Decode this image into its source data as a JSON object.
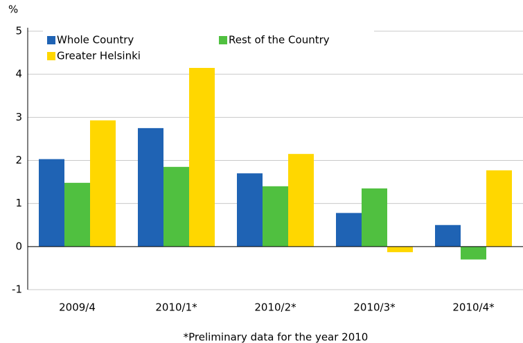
{
  "chart_data": {
    "type": "bar",
    "y_label": "%",
    "categories": [
      "2009/4",
      "2010/1*",
      "2010/2*",
      "2010/3*",
      "2010/4*"
    ],
    "series": [
      {
        "name": "Whole Country",
        "color": "#1f63b4",
        "values": [
          2.03,
          2.75,
          1.7,
          0.78,
          0.5
        ]
      },
      {
        "name": "Rest of the Country",
        "color": "#50c040",
        "values": [
          1.48,
          1.85,
          1.4,
          1.35,
          -0.3
        ]
      },
      {
        "name": "Greater Helsinki",
        "color": "#ffd700",
        "values": [
          2.93,
          4.18,
          2.15,
          -0.13,
          1.77
        ]
      }
    ],
    "ylim": [
      -1,
      5
    ],
    "yticks": [
      -1,
      0,
      1,
      2,
      3,
      4,
      5
    ],
    "grid": true,
    "legend": "upper left",
    "footnote": "*Preliminary data for the year 2010"
  }
}
